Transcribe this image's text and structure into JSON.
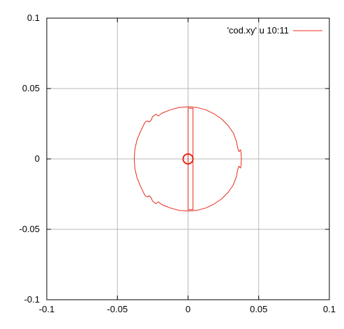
{
  "chart_data": {
    "type": "line",
    "title": "",
    "xlabel": "",
    "ylabel": "",
    "xlim": [
      -0.1,
      0.1
    ],
    "ylim": [
      -0.1,
      0.1
    ],
    "grid": true,
    "legend_position": "top-right",
    "x_ticks": [
      -0.1,
      -0.05,
      0,
      0.05,
      0.1
    ],
    "y_ticks": [
      -0.1,
      -0.05,
      0,
      0.05,
      0.1
    ],
    "x_tick_labels": [
      "-0.1",
      "-0.05",
      "0",
      "0.05",
      "0.1"
    ],
    "y_tick_labels": [
      "-0.1",
      "-0.05",
      "0",
      "0.05",
      "0.1"
    ],
    "series": [
      {
        "name": "'cod.xy' u 10:11",
        "color": "#e8291c",
        "curves": [
          {
            "label": "outer closed orbit",
            "points": [
              [
                0.0,
                0.037
              ],
              [
                0.0065,
                0.0365
              ],
              [
                0.0127,
                0.0348
              ],
              [
                0.0185,
                0.032
              ],
              [
                0.0237,
                0.0284
              ],
              [
                0.0283,
                0.0238
              ],
              [
                0.032,
                0.0185
              ],
              [
                0.0342,
                0.0125
              ],
              [
                0.0352,
                0.0075
              ],
              [
                0.036,
                0.0052
              ],
              [
                0.0372,
                0.0065
              ],
              [
                0.0375,
                0.0045
              ],
              [
                0.0378,
                0.0
              ],
              [
                0.0375,
                -0.0045
              ],
              [
                0.0372,
                -0.0065
              ],
              [
                0.036,
                -0.0052
              ],
              [
                0.0352,
                -0.0075
              ],
              [
                0.0342,
                -0.0125
              ],
              [
                0.032,
                -0.0185
              ],
              [
                0.0283,
                -0.0238
              ],
              [
                0.0237,
                -0.0284
              ],
              [
                0.0185,
                -0.032
              ],
              [
                0.0127,
                -0.0348
              ],
              [
                0.0065,
                -0.0365
              ],
              [
                0.0,
                -0.037
              ],
              [
                -0.0065,
                -0.0365
              ],
              [
                -0.0127,
                -0.0348
              ],
              [
                -0.0185,
                -0.0325
              ],
              [
                -0.021,
                -0.0305
              ],
              [
                -0.0228,
                -0.0318
              ],
              [
                -0.0252,
                -0.0298
              ],
              [
                -0.0262,
                -0.0275
              ],
              [
                -0.0274,
                -0.0262
              ],
              [
                -0.029,
                -0.027
              ],
              [
                -0.0303,
                -0.0262
              ],
              [
                -0.0312,
                -0.0245
              ],
              [
                -0.0338,
                -0.0192
              ],
              [
                -0.0362,
                -0.0132
              ],
              [
                -0.0376,
                -0.007
              ],
              [
                -0.0381,
                0.0
              ],
              [
                -0.0376,
                0.007
              ],
              [
                -0.0362,
                0.0132
              ],
              [
                -0.0338,
                0.0192
              ],
              [
                -0.0312,
                0.0245
              ],
              [
                -0.0303,
                0.0262
              ],
              [
                -0.029,
                0.027
              ],
              [
                -0.0274,
                0.0262
              ],
              [
                -0.0262,
                0.0275
              ],
              [
                -0.0252,
                0.0298
              ],
              [
                -0.0228,
                0.0318
              ],
              [
                -0.021,
                0.0305
              ],
              [
                -0.0185,
                0.0325
              ],
              [
                -0.0127,
                0.0348
              ],
              [
                -0.0065,
                0.0365
              ],
              [
                0.0,
                0.037
              ]
            ]
          },
          {
            "label": "inner rectangle",
            "points": [
              [
                0.0,
                0.036
              ],
              [
                0.0035,
                0.036
              ],
              [
                0.0035,
                -0.036
              ],
              [
                0.0,
                -0.036
              ],
              [
                0.0,
                0.036
              ]
            ]
          },
          {
            "label": "central ring",
            "circle": {
              "cx": 0.0,
              "cy": 0.0,
              "r": 0.0035
            }
          }
        ]
      }
    ]
  }
}
